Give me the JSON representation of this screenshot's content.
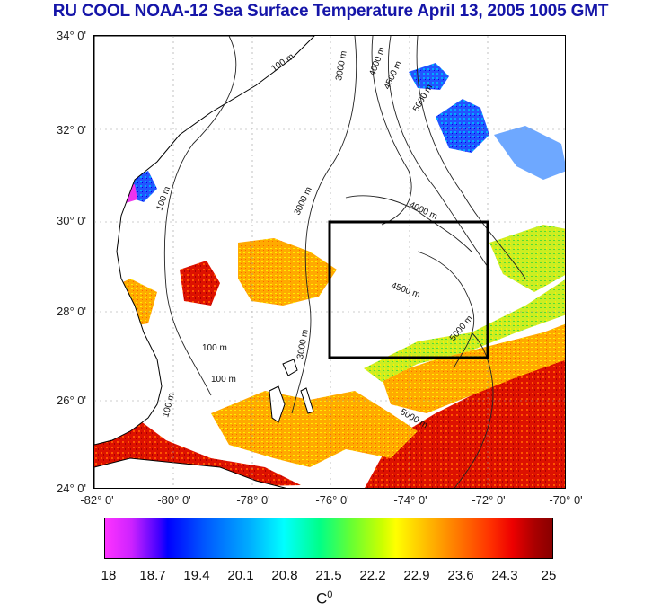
{
  "title": "RU COOL  NOAA-12 Sea Surface Temperature April 13, 2005 1005 GMT",
  "lat_ticks": [
    "34° 0'",
    "32° 0'",
    "30° 0'",
    "28° 0'",
    "26° 0'",
    "24° 0'"
  ],
  "lon_ticks": [
    "-82° 0'",
    "-80° 0'",
    "-78° 0'",
    "-76° 0'",
    "-74° 0'",
    "-72° 0'",
    "-70° 0'"
  ],
  "contour_labels": {
    "c100a": "100 m",
    "c100b": "100 m",
    "c100c": "100 m",
    "c100d": "100 m",
    "c100e": "100 m",
    "c3000a": "3000 m",
    "c3000b": "3000 m",
    "c3000c": "3000 m",
    "c4000a": "4000 m",
    "c4000b": "4000 m",
    "c4500a": "4500 m",
    "c4500b": "4500 m",
    "c5000a": "5000 m",
    "c5000b": "5000 m",
    "c5000c": "5000 m"
  },
  "colorbar": {
    "ticks": [
      "18",
      "18.7",
      "19.4",
      "20.1",
      "20.8",
      "21.5",
      "22.2",
      "22.9",
      "23.6",
      "24.3",
      "25"
    ],
    "unit": "C",
    "unit_sup": "0"
  },
  "colors": {
    "title": "#1515a8",
    "warm": "#d40000",
    "land": "#ffffff"
  }
}
